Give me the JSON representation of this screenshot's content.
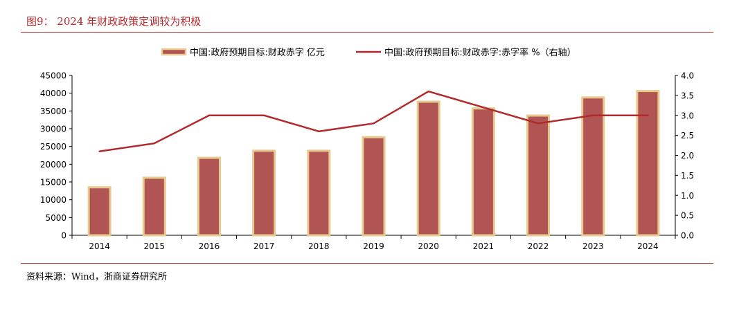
{
  "figure": {
    "title": "图9： 2024 年财政政策定调较为积极",
    "source": "资料来源：Wind，浙商证券研究所"
  },
  "colors": {
    "accent": "#b5282a",
    "bar_fill": "#b05454",
    "bar_border": "#e8c98e",
    "line": "#b1292b"
  },
  "chart_data": {
    "type": "bar",
    "categories": [
      "2014",
      "2015",
      "2016",
      "2017",
      "2018",
      "2019",
      "2020",
      "2021",
      "2022",
      "2023",
      "2024"
    ],
    "series": [
      {
        "name": "中国:政府预期目标:财政赤字 亿元",
        "type": "bar",
        "axis": "left",
        "values": [
          13500,
          16200,
          21800,
          23800,
          23800,
          27600,
          37600,
          35700,
          33700,
          38800,
          40600
        ]
      },
      {
        "name": "中国:政府预期目标:财政赤字:赤字率 %（右轴）",
        "type": "line",
        "axis": "right",
        "values": [
          2.1,
          2.3,
          3.0,
          3.0,
          2.6,
          2.8,
          3.6,
          3.2,
          2.8,
          3.0,
          3.0
        ]
      }
    ],
    "y_left": {
      "ylim": [
        0,
        45000
      ],
      "ticks": [
        "0",
        "5000",
        "10000",
        "15000",
        "20000",
        "25000",
        "30000",
        "35000",
        "40000",
        "45000"
      ]
    },
    "y_right": {
      "ylim": [
        0,
        4.0
      ],
      "ticks": [
        "0.0",
        "0.5",
        "1.0",
        "1.5",
        "2.0",
        "2.5",
        "3.0",
        "3.5",
        "4.0"
      ]
    },
    "grid": false,
    "legend": "top"
  }
}
